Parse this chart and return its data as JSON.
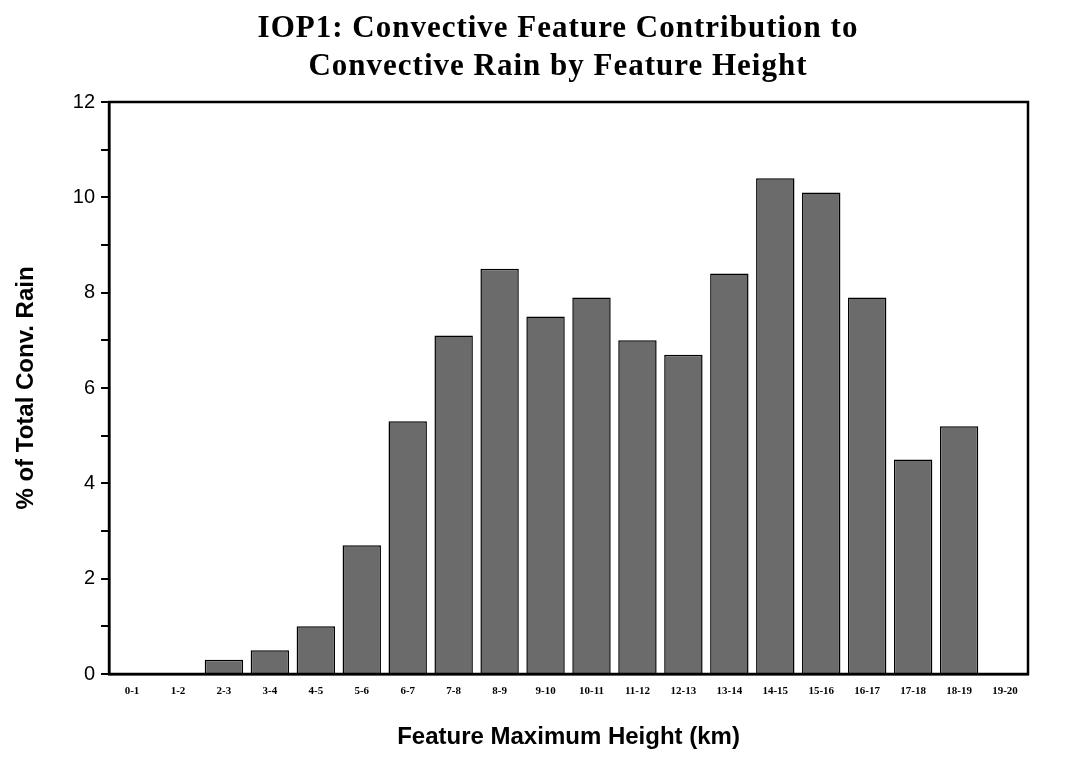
{
  "chart_data": {
    "type": "bar",
    "title": "IOP1: Convective Feature Contribution to Convective Rain by Feature Height",
    "xlabel": "Feature Maximum Height (km)",
    "ylabel": "% of Total Conv. Rain",
    "categories": [
      "0-1",
      "1-2",
      "2-3",
      "3-4",
      "4-5",
      "5-6",
      "6-7",
      "7-8",
      "8-9",
      "9-10",
      "10-11",
      "11-12",
      "12-13",
      "13-14",
      "14-15",
      "15-16",
      "16-17",
      "17-18",
      "18-19",
      "19-20"
    ],
    "values": [
      0,
      0,
      0.3,
      0.5,
      1.0,
      2.7,
      5.3,
      7.1,
      8.5,
      7.5,
      7.9,
      7.0,
      6.7,
      8.4,
      10.4,
      10.1,
      7.9,
      4.5,
      5.2,
      0
    ],
    "color": "#6b6b6b",
    "ylim": [
      0,
      12
    ],
    "yticks": [
      0,
      {
        "value": 1,
        "label": null
      },
      2,
      {
        "value": 3,
        "label": null
      },
      4,
      {
        "value": 5,
        "label": null
      },
      6,
      {
        "value": 7,
        "label": null
      },
      8,
      {
        "value": 9,
        "label": null
      },
      10,
      {
        "value": 11,
        "label": null
      },
      12
    ],
    "grid": false,
    "legend": false
  }
}
